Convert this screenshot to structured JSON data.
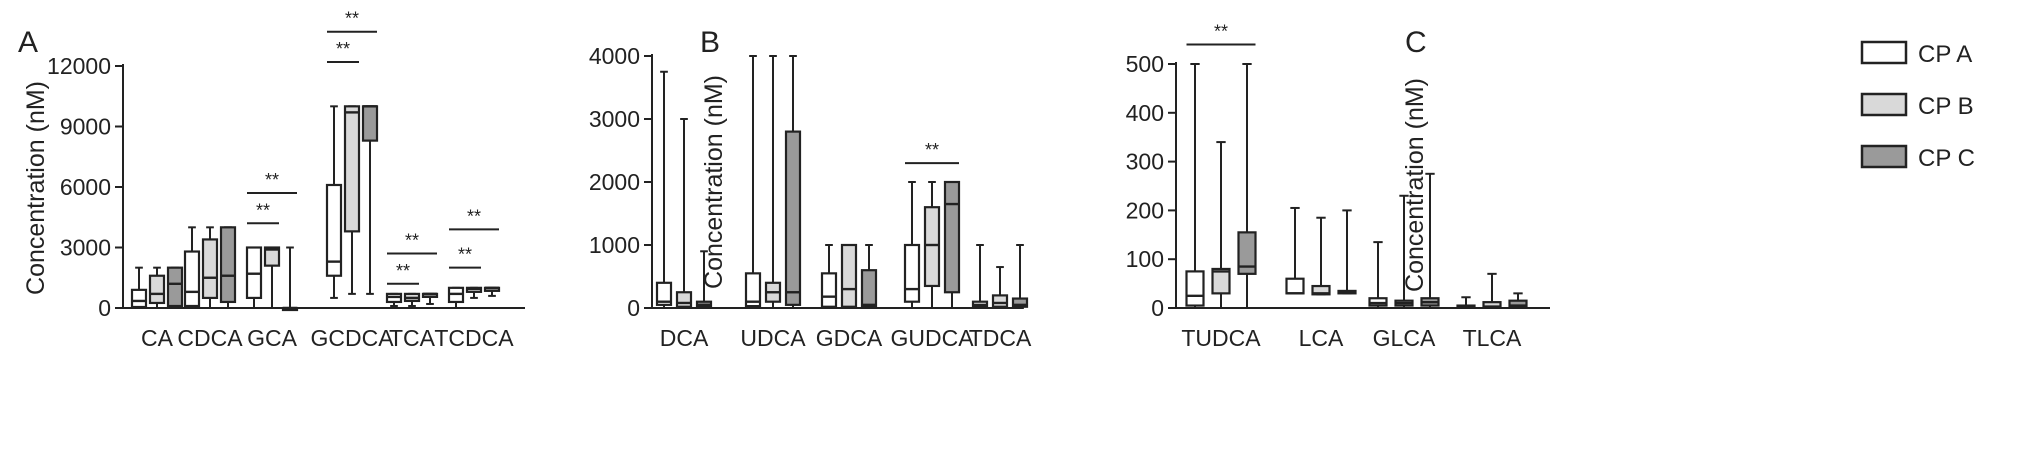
{
  "legend": [
    {
      "label": "CP A",
      "color": "#ffffff"
    },
    {
      "label": "CP B",
      "color": "#d9d9d9"
    },
    {
      "label": "CP C",
      "color": "#9a9a9a"
    }
  ],
  "chart_data": [
    {
      "type": "boxplot",
      "panel": "A",
      "ylabel": "Concentration (nM)",
      "ylim": [
        0,
        12000
      ],
      "yticks": [
        0,
        3000,
        6000,
        9000,
        12000
      ],
      "categories": [
        "CA",
        "CDCA",
        "GCA",
        "GCDCA",
        "TCA",
        "TCDCA"
      ],
      "series": [
        {
          "name": "CP A",
          "boxes": [
            {
              "min": 0,
              "q1": 50,
              "median": 350,
              "q3": 900,
              "max": 2000
            },
            {
              "min": 0,
              "q1": 100,
              "median": 800,
              "q3": 2800,
              "max": 4000
            },
            {
              "min": 0,
              "q1": 500,
              "median": 1700,
              "q3": 3000,
              "max": 3000
            },
            {
              "min": 500,
              "q1": 1600,
              "median": 2300,
              "q3": 6100,
              "max": 10000
            },
            {
              "min": 100,
              "q1": 300,
              "median": 550,
              "q3": 700,
              "max": 700
            },
            {
              "min": 0,
              "q1": 300,
              "median": 700,
              "q3": 1000,
              "max": 1000
            }
          ]
        },
        {
          "name": "CP B",
          "boxes": [
            {
              "min": 0,
              "q1": 250,
              "median": 700,
              "q3": 1600,
              "max": 2000
            },
            {
              "min": 0,
              "q1": 500,
              "median": 1500,
              "q3": 3400,
              "max": 4000
            },
            {
              "min": 0,
              "q1": 2100,
              "median": 2900,
              "q3": 3000,
              "max": 3000
            },
            {
              "min": 700,
              "q1": 3800,
              "median": 9700,
              "q3": 10000,
              "max": 10000
            },
            {
              "min": 100,
              "q1": 350,
              "median": 500,
              "q3": 700,
              "max": 700
            },
            {
              "min": 500,
              "q1": 800,
              "median": 950,
              "q3": 1000,
              "max": 1000
            }
          ]
        },
        {
          "name": "CP C",
          "boxes": [
            {
              "min": 0,
              "q1": 100,
              "median": 1200,
              "q3": 2000,
              "max": 2000
            },
            {
              "min": 0,
              "q1": 300,
              "median": 1600,
              "q3": 4000,
              "max": 4000
            },
            {
              "min": 0,
              "q1": 0,
              "median": 0,
              "q3": 0,
              "max": 3000
            },
            {
              "min": 700,
              "q1": 8300,
              "median": 10000,
              "q3": 10000,
              "max": 10000
            },
            {
              "min": 200,
              "q1": 550,
              "median": 700,
              "q3": 700,
              "max": 700
            },
            {
              "min": 600,
              "q1": 850,
              "median": 1000,
              "q3": 1000,
              "max": 1000
            }
          ]
        }
      ],
      "significance": [
        {
          "category": "GCA",
          "from": 0,
          "to": 1,
          "value": 4200,
          "label": "**"
        },
        {
          "category": "GCA",
          "from": 0,
          "to": 2,
          "value": 5700,
          "label": "**"
        },
        {
          "category": "GCDCA",
          "from": 0,
          "to": 1,
          "value": 12200,
          "label": "**"
        },
        {
          "category": "GCDCA",
          "from": 0,
          "to": 2,
          "value": 13700,
          "label": "**"
        },
        {
          "category": "TCA",
          "from": 0,
          "to": 1,
          "value": 1200,
          "label": "**"
        },
        {
          "category": "TCA",
          "from": 0,
          "to": 2,
          "value": 2700,
          "label": "**"
        },
        {
          "category": "TCDCA",
          "from": 0,
          "to": 1,
          "value": 2000,
          "label": "**"
        },
        {
          "category": "TCDCA",
          "from": 0,
          "to": 2,
          "value": 3900,
          "label": "**"
        }
      ]
    },
    {
      "type": "boxplot",
      "panel": "B",
      "ylabel": "Concentration (nM)",
      "ylim": [
        0,
        4000
      ],
      "yticks": [
        0,
        1000,
        2000,
        3000,
        4000
      ],
      "categories": [
        "DCA",
        "UDCA",
        "GDCA",
        "GUDCA",
        "TDCA"
      ],
      "series": [
        {
          "name": "CP A",
          "boxes": [
            {
              "min": 0,
              "q1": 50,
              "median": 100,
              "q3": 400,
              "max": 3750
            },
            {
              "min": 0,
              "q1": 30,
              "median": 100,
              "q3": 550,
              "max": 4000
            },
            {
              "min": 0,
              "q1": 20,
              "median": 180,
              "q3": 550,
              "max": 1000
            },
            {
              "min": 0,
              "q1": 100,
              "median": 300,
              "q3": 1000,
              "max": 2000
            },
            {
              "min": 0,
              "q1": 20,
              "median": 50,
              "q3": 100,
              "max": 1000
            }
          ]
        },
        {
          "name": "CP B",
          "boxes": [
            {
              "min": 0,
              "q1": 20,
              "median": 80,
              "q3": 250,
              "max": 3000
            },
            {
              "min": 0,
              "q1": 100,
              "median": 250,
              "q3": 400,
              "max": 4000
            },
            {
              "min": 0,
              "q1": 20,
              "median": 300,
              "q3": 1000,
              "max": 1000
            },
            {
              "min": 0,
              "q1": 350,
              "median": 1000,
              "q3": 1600,
              "max": 2000
            },
            {
              "min": 0,
              "q1": 20,
              "median": 80,
              "q3": 200,
              "max": 650
            }
          ]
        },
        {
          "name": "CP C",
          "boxes": [
            {
              "min": 0,
              "q1": 20,
              "median": 50,
              "q3": 100,
              "max": 900
            },
            {
              "min": 0,
              "q1": 50,
              "median": 250,
              "q3": 2800,
              "max": 4000
            },
            {
              "min": 0,
              "q1": 20,
              "median": 50,
              "q3": 600,
              "max": 1000
            },
            {
              "min": 0,
              "q1": 250,
              "median": 1650,
              "q3": 2000,
              "max": 2000
            },
            {
              "min": 0,
              "q1": 20,
              "median": 50,
              "q3": 150,
              "max": 1000
            }
          ]
        }
      ],
      "significance": [
        {
          "category": "GUDCA",
          "from": 0,
          "to": 2,
          "value": 2300,
          "label": "**"
        }
      ]
    },
    {
      "type": "boxplot",
      "panel": "C",
      "ylabel": "Concentration (nM)",
      "ylim": [
        0,
        500
      ],
      "yticks": [
        0,
        100,
        200,
        300,
        400,
        500
      ],
      "categories": [
        "TUDCA",
        "LCA",
        "GLCA",
        "TLCA"
      ],
      "series": [
        {
          "name": "CP A",
          "boxes": [
            {
              "min": 0,
              "q1": 5,
              "median": 25,
              "q3": 75,
              "max": 500
            },
            {
              "min": 30,
              "q1": 30,
              "median": 30,
              "q3": 60,
              "max": 205
            },
            {
              "min": 0,
              "q1": 5,
              "median": 10,
              "q3": 20,
              "max": 135
            },
            {
              "min": 0,
              "q1": 2,
              "median": 3,
              "q3": 5,
              "max": 22
            }
          ]
        },
        {
          "name": "CP B",
          "boxes": [
            {
              "min": 0,
              "q1": 30,
              "median": 75,
              "q3": 80,
              "max": 340
            },
            {
              "min": 28,
              "q1": 28,
              "median": 30,
              "q3": 45,
              "max": 185
            },
            {
              "min": 0,
              "q1": 5,
              "median": 10,
              "q3": 15,
              "max": 230
            },
            {
              "min": 0,
              "q1": 2,
              "median": 3,
              "q3": 12,
              "max": 70
            }
          ]
        },
        {
          "name": "CP C",
          "boxes": [
            {
              "min": 0,
              "q1": 70,
              "median": 85,
              "q3": 155,
              "max": 500
            },
            {
              "min": 30,
              "q1": 30,
              "median": 32,
              "q3": 35,
              "max": 200
            },
            {
              "min": 0,
              "q1": 5,
              "median": 12,
              "q3": 20,
              "max": 275
            },
            {
              "min": 0,
              "q1": 2,
              "median": 5,
              "q3": 15,
              "max": 30
            }
          ]
        }
      ],
      "significance": [
        {
          "category": "TUDCA",
          "from": 0,
          "to": 2,
          "value": 540,
          "label": "**"
        }
      ]
    }
  ]
}
